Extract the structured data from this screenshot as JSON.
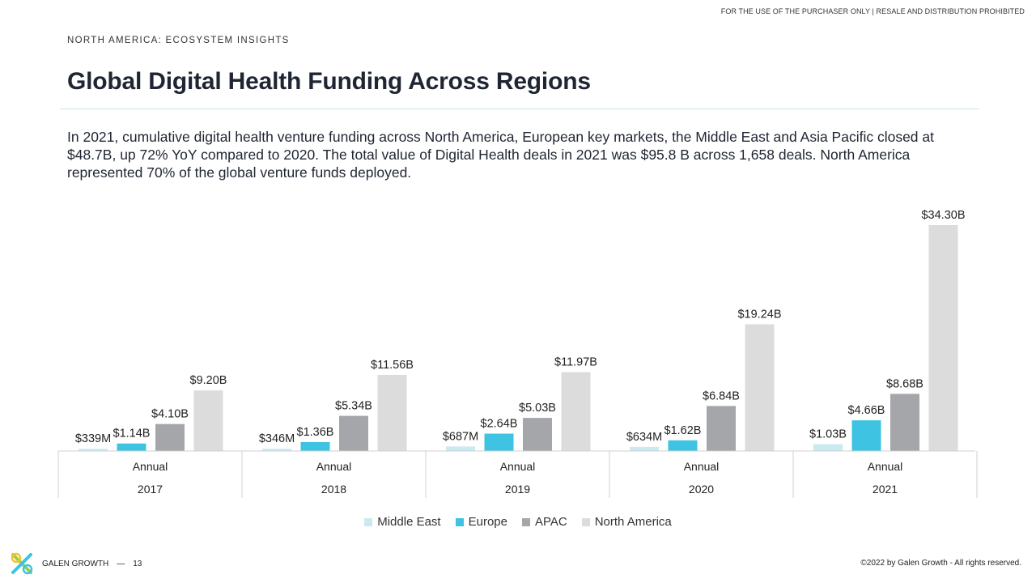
{
  "header": {
    "disclaimer": "FOR THE USE OF THE PURCHASER ONLY | RESALE AND DISTRIBUTION PROHIBITED",
    "kicker": "NORTH AMERICA: ECOSYSTEM INSIGHTS",
    "title": "Global Digital Health Funding Across Regions"
  },
  "body": {
    "text": "In 2021, cumulative digital health venture funding across North America, European key markets, the Middle East and Asia Pacific closed at $48.7B, up 72% YoY compared to 2020. The total value of Digital Health deals in 2021 was $95.8 B across 1,658 deals. North America represented 70% of the global venture funds deployed."
  },
  "chart_data": {
    "type": "bar",
    "categories": [
      "2017",
      "2018",
      "2019",
      "2020",
      "2021"
    ],
    "sub_categories": [
      "Annual",
      "Annual",
      "Annual",
      "Annual",
      "Annual"
    ],
    "unit": "$B",
    "ylim": [
      0,
      34.3
    ],
    "grid": false,
    "legend_position": "bottom",
    "series": [
      {
        "name": "Middle East",
        "color": "#c9eaf0",
        "values": [
          0.339,
          0.346,
          0.687,
          0.634,
          1.03
        ],
        "labels": [
          "$339M",
          "$346M",
          "$687M",
          "$634M",
          "$1.03B"
        ]
      },
      {
        "name": "Europe",
        "color": "#3ec4e2",
        "values": [
          1.14,
          1.36,
          2.64,
          1.62,
          4.66
        ],
        "labels": [
          "$1.14B",
          "$1.36B",
          "$2.64B",
          "$1.62B",
          "$4.66B"
        ]
      },
      {
        "name": "APAC",
        "color": "#a4a6aa",
        "values": [
          4.1,
          5.34,
          5.03,
          6.84,
          8.68
        ],
        "labels": [
          "$4.10B",
          "$5.34B",
          "$5.03B",
          "$6.84B",
          "$8.68B"
        ]
      },
      {
        "name": "North America",
        "color": "#dcdcdd",
        "values": [
          9.2,
          11.56,
          11.97,
          19.24,
          34.3
        ],
        "labels": [
          "$9.20B",
          "$11.56B",
          "$11.97B",
          "$19.24B",
          "$34.30B"
        ]
      }
    ]
  },
  "footer": {
    "brand": "GALEN GROWTH",
    "separator": "—",
    "page_number": "13",
    "copyright": "©2022 by Galen Growth - All rights reserved."
  }
}
